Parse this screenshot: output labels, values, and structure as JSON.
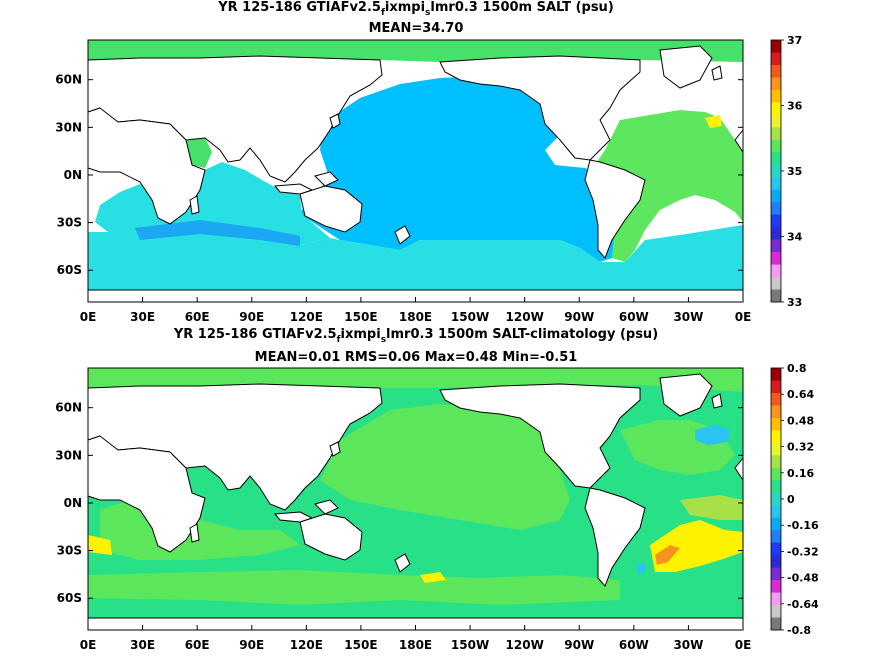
{
  "chart_data": [
    {
      "type": "heatmap",
      "title": "YR 125-186 GTIAFv2.5",
      "title_sub": "f",
      "title_mid": "ixmpi",
      "title_sub2": "s",
      "title_end": "lmr0.3 1500m SALT (psu)",
      "stats": "MEAN=34.70",
      "x_ticks": [
        "0E",
        "30E",
        "60E",
        "90E",
        "120E",
        "150E",
        "180E",
        "150W",
        "120W",
        "90W",
        "60W",
        "30W",
        "0E"
      ],
      "y_ticks": [
        "60N",
        "30N",
        "0N",
        "30S",
        "60S"
      ],
      "y_tick_values": [
        60,
        30,
        0,
        -30,
        -60
      ],
      "ylim": [
        -80,
        85
      ],
      "colorbar_labels": [
        "37",
        "36",
        "35",
        "34",
        "33"
      ],
      "colorbar_range": [
        33,
        37
      ],
      "colorbar_colors": [
        "#9b0000",
        "#d71a1a",
        "#f05a1e",
        "#f7941d",
        "#fdbf00",
        "#fff200",
        "#e9f52a",
        "#a8e04a",
        "#5ce65c",
        "#27e088",
        "#2bd6c6",
        "#2bc4f0",
        "#0aa8f5",
        "#1e7ef5",
        "#1f3cf5",
        "#2b2bd6",
        "#7a2bd6",
        "#d62bd6",
        "#f59af5",
        "#c8c8c8",
        "#787878"
      ],
      "regions": [
        {
          "name": "pacific",
          "color": "#00bfff"
        },
        {
          "name": "southern-band",
          "color": "#1ba7f2"
        },
        {
          "name": "atlantic",
          "color": "#5ee65e"
        },
        {
          "name": "indian",
          "color": "#28e0e4"
        },
        {
          "name": "arctic",
          "color": "#46e06a"
        }
      ]
    },
    {
      "type": "heatmap",
      "title": "YR 125-186 GTIAFv2.5",
      "title_sub": "f",
      "title_mid": "ixmpi",
      "title_sub2": "s",
      "title_end": "lmr0.3 1500m SALT-climatology (psu)",
      "stats": "MEAN=0.01   RMS=0.06   Max=0.48   Min=-0.51",
      "x_ticks": [
        "0E",
        "30E",
        "60E",
        "90E",
        "120E",
        "150E",
        "180E",
        "150W",
        "120W",
        "90W",
        "60W",
        "30W",
        "0E"
      ],
      "y_ticks": [
        "60N",
        "30N",
        "0N",
        "30S",
        "60S"
      ],
      "y_tick_values": [
        60,
        30,
        0,
        -30,
        -60
      ],
      "ylim": [
        -80,
        85
      ],
      "colorbar_labels": [
        "0.8",
        "0.64",
        "0.48",
        "0.32",
        "0.16",
        "0",
        "-0.16",
        "-0.32",
        "-0.48",
        "-0.64",
        "-0.8"
      ],
      "colorbar_range": [
        -0.8,
        0.8
      ],
      "colorbar_colors": [
        "#9b0000",
        "#d71a1a",
        "#f05a1e",
        "#f7941d",
        "#fdbf00",
        "#fff200",
        "#e9f52a",
        "#a8e04a",
        "#5ce65c",
        "#27e088",
        "#2bd6c6",
        "#2bc4f0",
        "#0aa8f5",
        "#1e7ef5",
        "#1f3cf5",
        "#2b2bd6",
        "#7a2bd6",
        "#d62bd6",
        "#f59af5",
        "#c8c8c8",
        "#787878"
      ],
      "regions": [
        {
          "name": "background",
          "color": "#27e088"
        },
        {
          "name": "positive",
          "color": "#5ce65c"
        },
        {
          "name": "yellow-anomaly",
          "color": "#fff200"
        },
        {
          "name": "blue-anomaly",
          "color": "#2bc4f0"
        }
      ]
    }
  ]
}
